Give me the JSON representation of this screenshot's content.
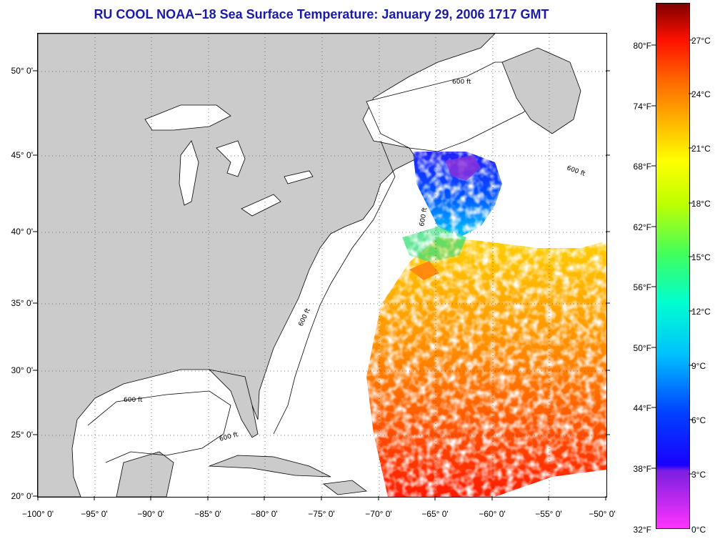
{
  "title": "RU COOL  NOAA−18  Sea Surface Temperature:  January 29, 2006 1717 GMT",
  "latitude_labels": [
    "50° 0'",
    "45° 0'",
    "40° 0'",
    "35° 0'",
    "30° 0'",
    "25° 0'",
    "20° 0'"
  ],
  "longitude_labels": [
    "−100° 0'",
    "−95° 0'",
    "−90° 0'",
    "−85° 0'",
    "−80° 0'",
    "−75° 0'",
    "−70° 0'",
    "−65° 0'",
    "−60° 0'",
    "−55° 0'",
    "−50° 0'"
  ],
  "map_extent": {
    "lon_min": -100,
    "lon_max": -50,
    "lat_min": 20,
    "lat_max": 52.5
  },
  "isobath_labels": [
    "600 ft",
    "600 ft",
    "600 ft",
    "600 ft",
    "600 ft",
    "600 ft"
  ],
  "colorbar": {
    "fahrenheit_labels": [
      "80°F",
      "74°F",
      "68°F",
      "62°F",
      "56°F",
      "50°F",
      "44°F",
      "38°F",
      "32°F"
    ],
    "celsius_labels": [
      "27°C",
      "24°C",
      "21°C",
      "18°C",
      "15°C",
      "12°C",
      "9°C",
      "6°C",
      "3°C",
      "0°C"
    ],
    "range_celsius": [
      0,
      29
    ]
  },
  "colors": {
    "land": "#cbcbcb",
    "ocean_no_data": "#ffffff",
    "title": "#1a1aa8",
    "colormap": [
      "#ff33ff",
      "#7a1fe0",
      "#0000ff",
      "#00c0ff",
      "#00ffd0",
      "#40ff60",
      "#c0ff00",
      "#ffff00",
      "#ffc000",
      "#ff8000",
      "#ff2000",
      "#c00000",
      "#800000"
    ]
  }
}
